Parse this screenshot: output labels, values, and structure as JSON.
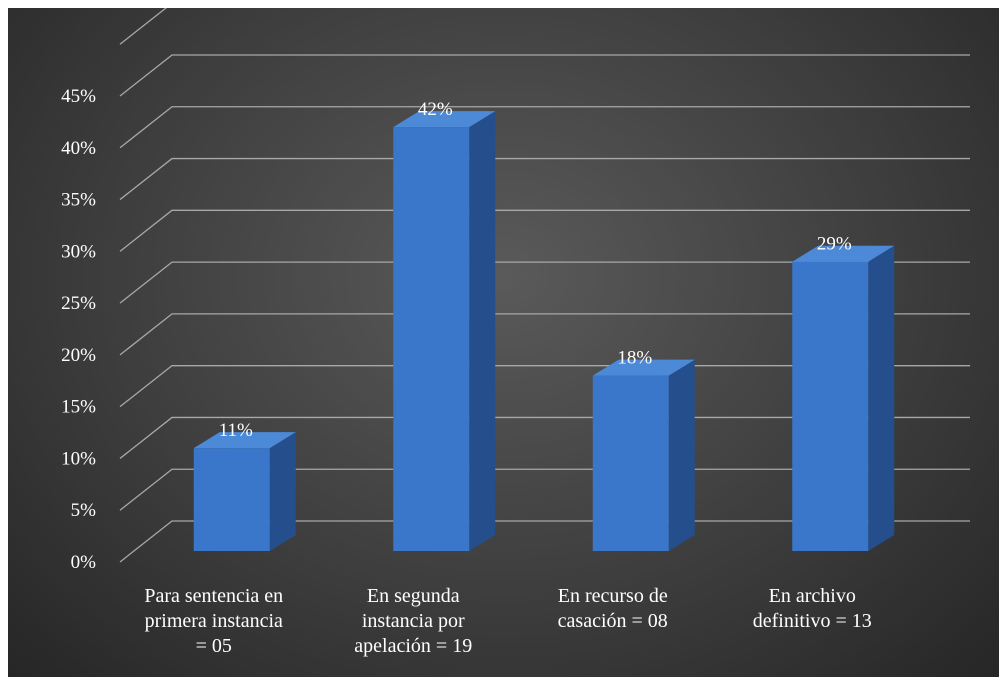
{
  "chart_data": {
    "type": "bar",
    "categories": [
      [
        "Para sentencia en",
        "primera instancia",
        "= 05"
      ],
      [
        "En segunda",
        "instancia por",
        "apelación = 19"
      ],
      [
        "En recurso de",
        "casación = 08"
      ],
      [
        "En archivo",
        "definitivo = 13"
      ]
    ],
    "values": [
      11,
      42,
      18,
      29
    ],
    "value_labels": [
      "11%",
      "42%",
      "18%",
      "29%"
    ],
    "y_ticks": [
      "0%",
      "5%",
      "10%",
      "15%",
      "20%",
      "25%",
      "30%",
      "35%",
      "40%",
      "45%"
    ],
    "ylim": [
      0,
      45
    ],
    "grid": true,
    "style": "3d-column",
    "colors": {
      "bar_front": "#3a76c9",
      "bar_side": "#244f8c",
      "bar_top": "#4c8ad8",
      "grid": "#a8a8a8",
      "text": "#ffffff"
    }
  }
}
